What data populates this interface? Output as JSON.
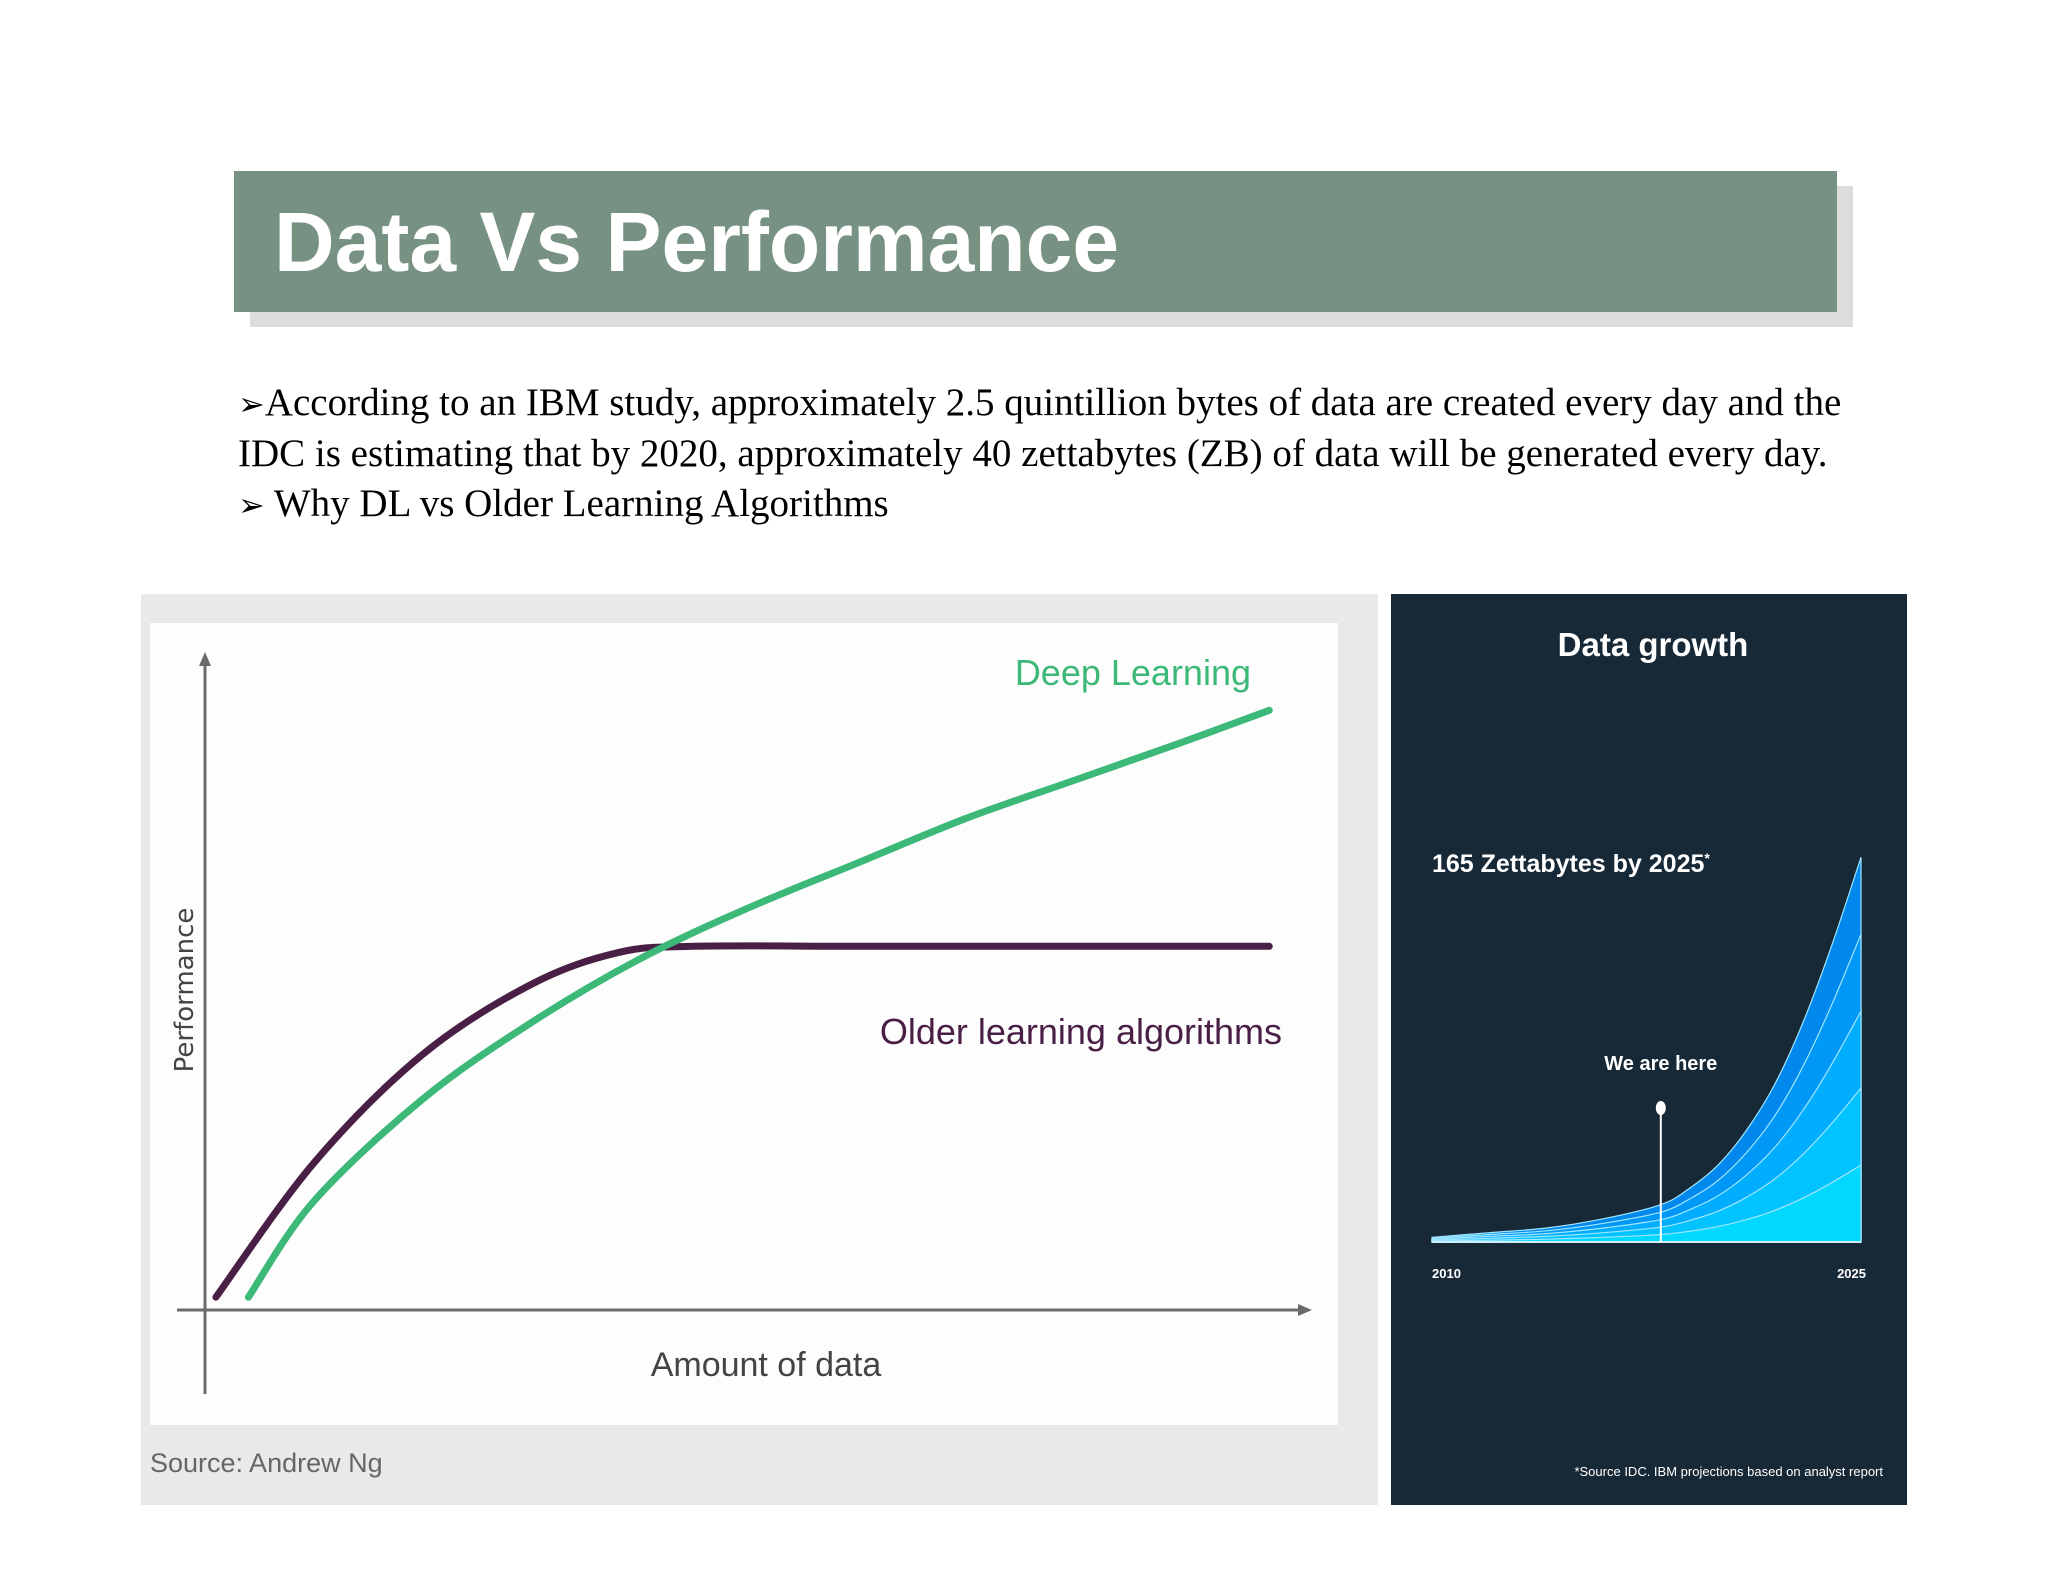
{
  "slide": {
    "title": "Data Vs Performance",
    "bullet_symbol": "➢",
    "paragraph": "According to an IBM study, approximately 2.5 quintillion bytes of data are created every day and the IDC is estimating that by 2020, approximately 40 zettabytes (ZB) of data will be generated every day.",
    "sub_bullet": "Why DL vs Older Learning Algorithms",
    "title_color": "#779282"
  },
  "chart_data": [
    {
      "type": "line",
      "title": "",
      "xlabel": "Amount of data",
      "ylabel": "Performance",
      "source": "Source: Andrew Ng",
      "grid": false,
      "xlim": [
        0,
        100
      ],
      "ylim": [
        0,
        100
      ],
      "series": [
        {
          "name": "Deep Learning",
          "color": "#3cb878",
          "x": [
            4,
            10,
            20,
            30,
            40,
            50,
            60,
            70,
            80,
            90,
            98
          ],
          "y": [
            2,
            17,
            33,
            45,
            55,
            63,
            70,
            77,
            83,
            89,
            94
          ]
        },
        {
          "name": "Older learning algorithms",
          "color": "#4a1f46",
          "x": [
            1,
            10,
            20,
            30,
            38,
            45,
            60,
            75,
            98
          ],
          "y": [
            2,
            23,
            40,
            51,
            56,
            57,
            57,
            57,
            57
          ]
        }
      ]
    },
    {
      "type": "area",
      "title": "Data growth",
      "annotation": "165 Zettabytes by 2025",
      "annotation_mark": "*",
      "marker_label": "We are here",
      "marker_x": 2018,
      "x_tick_labels": [
        "2010",
        "2025"
      ],
      "xlim": [
        2010,
        2025
      ],
      "ylim": [
        0,
        175
      ],
      "footnote": "*Source IDC. IBM projections based on analyst report",
      "x": [
        2010,
        2012,
        2014,
        2016,
        2018,
        2019,
        2020,
        2021,
        2022,
        2023,
        2024,
        2025
      ],
      "values": [
        2,
        4,
        6,
        10,
        16,
        23,
        33,
        48,
        68,
        95,
        128,
        165
      ],
      "band_fractions": [
        0.2,
        0.4,
        0.6,
        0.8,
        1.0
      ],
      "band_colors": [
        "#00d8ff",
        "#00c3ff",
        "#00adff",
        "#0098f7",
        "#0088ec"
      ],
      "background": "#172837"
    }
  ]
}
